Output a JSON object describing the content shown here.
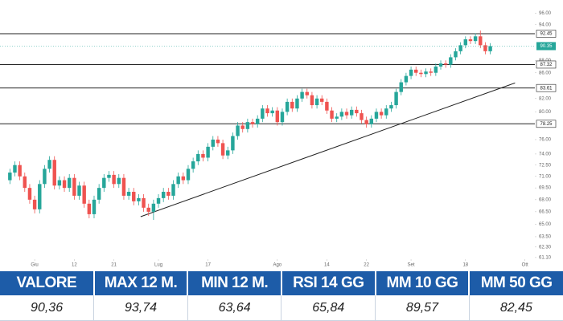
{
  "chart_data": {
    "type": "candlestick",
    "log": true,
    "xlim": [
      -2,
      106
    ],
    "xticks": [
      {
        "value": 5,
        "label": "Giu"
      },
      {
        "value": 13,
        "label": "12"
      },
      {
        "value": 21,
        "label": "21"
      },
      {
        "value": 30,
        "label": "Lug"
      },
      {
        "value": 40,
        "label": "17"
      },
      {
        "value": 54,
        "label": "Ago"
      },
      {
        "value": 64,
        "label": "14"
      },
      {
        "value": 72,
        "label": "22"
      },
      {
        "value": 81,
        "label": "Set"
      },
      {
        "value": 92,
        "label": "18"
      },
      {
        "value": 104,
        "label": "Ott"
      }
    ],
    "ylim": [
      61,
      98.4
    ],
    "yticks": [
      {
        "value": 96,
        "label": "96.00"
      },
      {
        "value": 94,
        "label": "94.00"
      },
      {
        "value": 88,
        "label": "88.00"
      },
      {
        "value": 86,
        "label": "86.00"
      },
      {
        "value": 82,
        "label": "82.00"
      },
      {
        "value": 80,
        "label": "80.00"
      },
      {
        "value": 76,
        "label": "76.00"
      },
      {
        "value": 74,
        "label": "74.00"
      },
      {
        "value": 72.5,
        "label": "72.50"
      },
      {
        "value": 71,
        "label": "71.00"
      },
      {
        "value": 69.5,
        "label": "69.50"
      },
      {
        "value": 68,
        "label": "68.00"
      },
      {
        "value": 66.5,
        "label": "66.50"
      },
      {
        "value": 65,
        "label": "65.00"
      },
      {
        "value": 63.5,
        "label": "63.50"
      },
      {
        "value": 62.3,
        "label": "62.30"
      },
      {
        "value": 61.1,
        "label": "61.10"
      }
    ],
    "colors": {
      "up": "#26a69a",
      "down": "#ef5350",
      "levels": "#222222"
    },
    "open": [
      70.5,
      71.5,
      72.5,
      71.0,
      69.5,
      68.0,
      66.8,
      70.0,
      72.0,
      73.2,
      69.8,
      70.5,
      69.5,
      70.8,
      68.5,
      69.8,
      67.5,
      66.2,
      68.0,
      69.5,
      70.8,
      71.2,
      70.0,
      70.8,
      68.5,
      69.0,
      67.8,
      68.2,
      67.0,
      66.5,
      67.5,
      68.2,
      69.0,
      68.5,
      70.0,
      71.0,
      70.5,
      72.0,
      73.0,
      74.0,
      73.5,
      75.0,
      76.0,
      75.5,
      73.8,
      74.5,
      76.5,
      78.0,
      77.5,
      78.5,
      78.2,
      79.0,
      80.5,
      79.8,
      80.2,
      78.5,
      80.0,
      81.5,
      80.5,
      82.0,
      83.0,
      82.5,
      81.0,
      82.0,
      81.5,
      80.2,
      79.0,
      79.3,
      80.0,
      79.5,
      80.3,
      79.8,
      78.8,
      78.2,
      79.0,
      80.0,
      79.5,
      80.5,
      81.0,
      83.0,
      84.5,
      85.5,
      86.5,
      86.0,
      85.8,
      86.2,
      86.0,
      87.0,
      87.5,
      87.3,
      88.5,
      89.5,
      90.5,
      91.5,
      91.2,
      92.0,
      90.5,
      89.5
    ],
    "high": [
      72.0,
      73.0,
      73.0,
      71.5,
      70.0,
      68.5,
      70.5,
      72.5,
      73.7,
      73.7,
      71.0,
      71.0,
      71.3,
      71.3,
      70.3,
      70.3,
      68.0,
      68.5,
      70.0,
      71.3,
      71.7,
      71.7,
      71.3,
      71.3,
      69.5,
      69.5,
      68.7,
      68.7,
      67.5,
      68.0,
      68.7,
      69.5,
      69.5,
      70.5,
      71.5,
      71.5,
      72.5,
      73.5,
      74.5,
      74.5,
      75.5,
      76.5,
      76.5,
      76.0,
      75.0,
      77.0,
      78.5,
      78.5,
      79.0,
      79.0,
      79.5,
      81.0,
      81.0,
      80.7,
      80.7,
      80.5,
      82.0,
      82.0,
      82.5,
      83.5,
      83.5,
      83.0,
      82.5,
      82.5,
      82.0,
      80.7,
      79.8,
      80.5,
      80.5,
      80.8,
      80.8,
      80.3,
      79.3,
      79.5,
      80.5,
      80.5,
      81.0,
      81.5,
      83.5,
      85.0,
      86.0,
      87.0,
      87.0,
      86.5,
      86.7,
      86.7,
      87.5,
      88.0,
      88.0,
      89.0,
      90.0,
      91.0,
      92.0,
      92.0,
      92.5,
      93.0,
      91.0,
      90.85
    ],
    "low": [
      70.0,
      71.0,
      70.5,
      69.0,
      67.5,
      66.3,
      66.3,
      69.5,
      71.5,
      69.3,
      69.3,
      69.0,
      69.0,
      68.0,
      68.0,
      67.0,
      65.7,
      65.7,
      67.5,
      69.0,
      70.3,
      69.5,
      69.5,
      68.0,
      68.0,
      67.3,
      67.3,
      66.5,
      66.0,
      65.5,
      67.0,
      67.7,
      68.0,
      68.0,
      69.5,
      70.0,
      70.0,
      71.5,
      72.5,
      73.0,
      73.0,
      74.5,
      75.0,
      73.3,
      73.3,
      74.0,
      76.0,
      77.0,
      77.0,
      77.7,
      77.7,
      78.5,
      79.3,
      79.3,
      78.0,
      78.0,
      79.5,
      80.0,
      80.0,
      81.5,
      82.0,
      80.5,
      80.5,
      81.0,
      79.7,
      78.5,
      78.5,
      78.8,
      79.0,
      79.0,
      79.3,
      78.3,
      77.7,
      77.7,
      78.5,
      79.0,
      79.0,
      80.0,
      80.5,
      82.5,
      84.0,
      85.0,
      85.5,
      85.3,
      85.3,
      85.5,
      85.5,
      86.5,
      86.8,
      86.8,
      88.0,
      89.0,
      90.0,
      90.7,
      90.7,
      90.0,
      89.0,
      89.0
    ],
    "close": [
      71.5,
      72.5,
      71.0,
      69.5,
      68.0,
      66.8,
      70.0,
      72.0,
      73.2,
      69.8,
      70.5,
      69.5,
      70.8,
      68.5,
      69.8,
      67.5,
      66.2,
      68.0,
      69.5,
      70.8,
      71.2,
      70.0,
      70.8,
      68.5,
      69.0,
      67.8,
      68.2,
      67.0,
      66.5,
      67.5,
      68.2,
      69.0,
      68.5,
      70.0,
      71.0,
      70.5,
      72.0,
      73.0,
      74.0,
      73.5,
      75.0,
      76.0,
      75.5,
      73.8,
      74.5,
      76.5,
      78.0,
      77.5,
      78.5,
      78.2,
      79.0,
      80.5,
      79.8,
      80.2,
      78.5,
      80.0,
      81.5,
      80.5,
      82.0,
      83.0,
      82.5,
      81.0,
      82.0,
      81.5,
      80.2,
      79.0,
      79.3,
      80.0,
      79.5,
      80.3,
      79.8,
      78.8,
      78.2,
      79.0,
      80.0,
      79.5,
      80.5,
      81.0,
      83.0,
      84.5,
      85.5,
      86.5,
      86.0,
      85.8,
      86.2,
      86.0,
      87.0,
      87.5,
      87.3,
      88.5,
      89.5,
      90.5,
      91.5,
      91.2,
      92.0,
      90.5,
      89.5,
      90.35
    ],
    "levels": [
      92.45,
      87.32,
      83.61,
      78.25
    ],
    "last_price": 90.35,
    "trendline": {
      "x": [
        26.4,
        102
      ],
      "y": [
        65.9,
        84.4
      ]
    }
  },
  "table": {
    "headers": [
      "VALORE",
      "MAX 12 M.",
      "MIN 12 M.",
      "RSI 14 GG",
      "MM 10 GG",
      "MM 50 GG"
    ],
    "rows": [
      [
        "90,36",
        "93,74",
        "63,64",
        "65,84",
        "89,57",
        "82,45"
      ]
    ]
  }
}
